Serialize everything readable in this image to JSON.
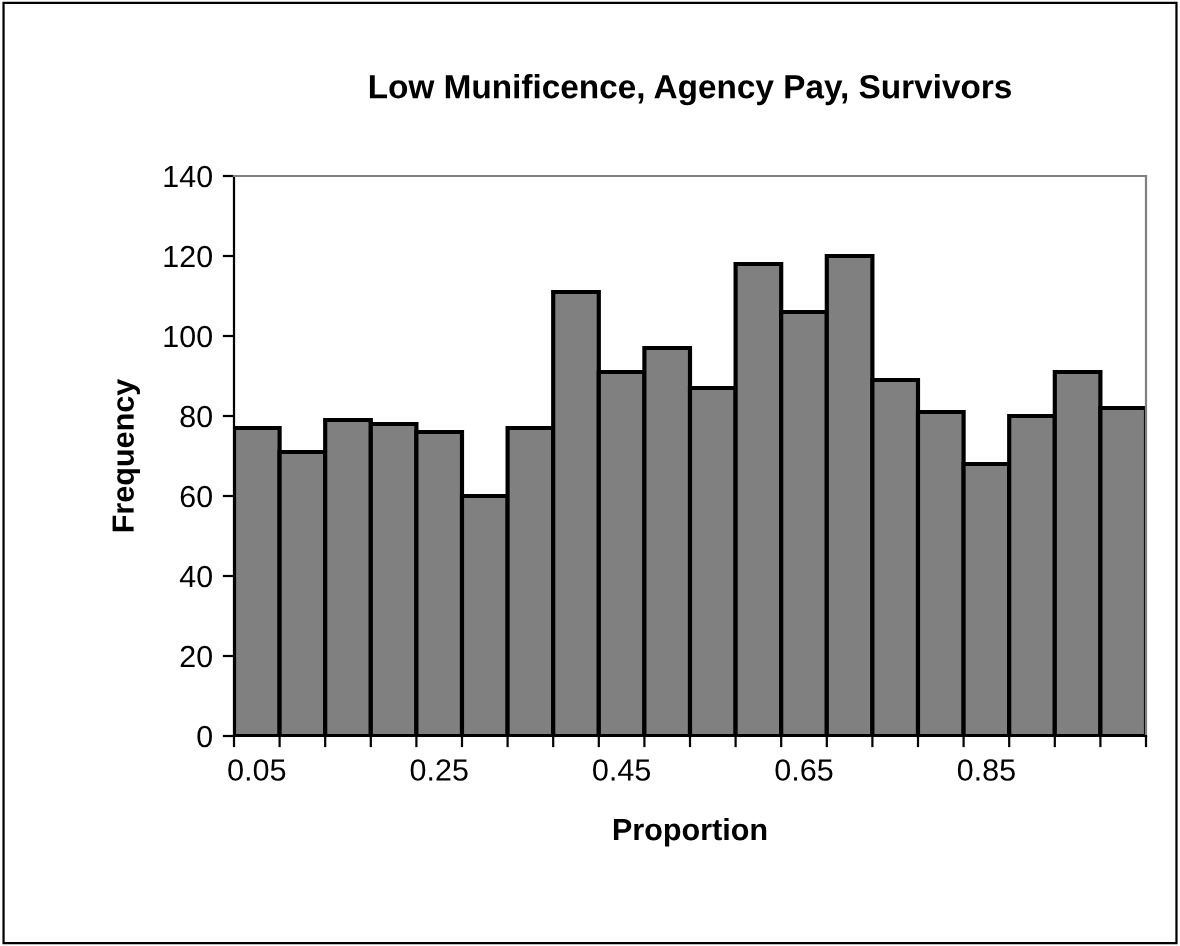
{
  "chart_data": {
    "type": "bar",
    "title": "Low Munificence, Agency Pay, Survivors",
    "xlabel": "Proportion",
    "ylabel": "Frequency",
    "categories": [
      "0.05",
      null,
      null,
      null,
      "0.25",
      null,
      null,
      null,
      "0.45",
      null,
      null,
      null,
      "0.65",
      null,
      null,
      null,
      "0.85",
      null,
      null,
      null
    ],
    "values": [
      77,
      71,
      79,
      78,
      76,
      60,
      77,
      111,
      91,
      97,
      87,
      118,
      106,
      120,
      89,
      81,
      68,
      80,
      91,
      82
    ],
    "color": "#808080",
    "ylim": [
      0,
      140
    ],
    "yticks": [
      0,
      20,
      40,
      60,
      80,
      100,
      120,
      140
    ],
    "grid": false,
    "legend": false
  }
}
